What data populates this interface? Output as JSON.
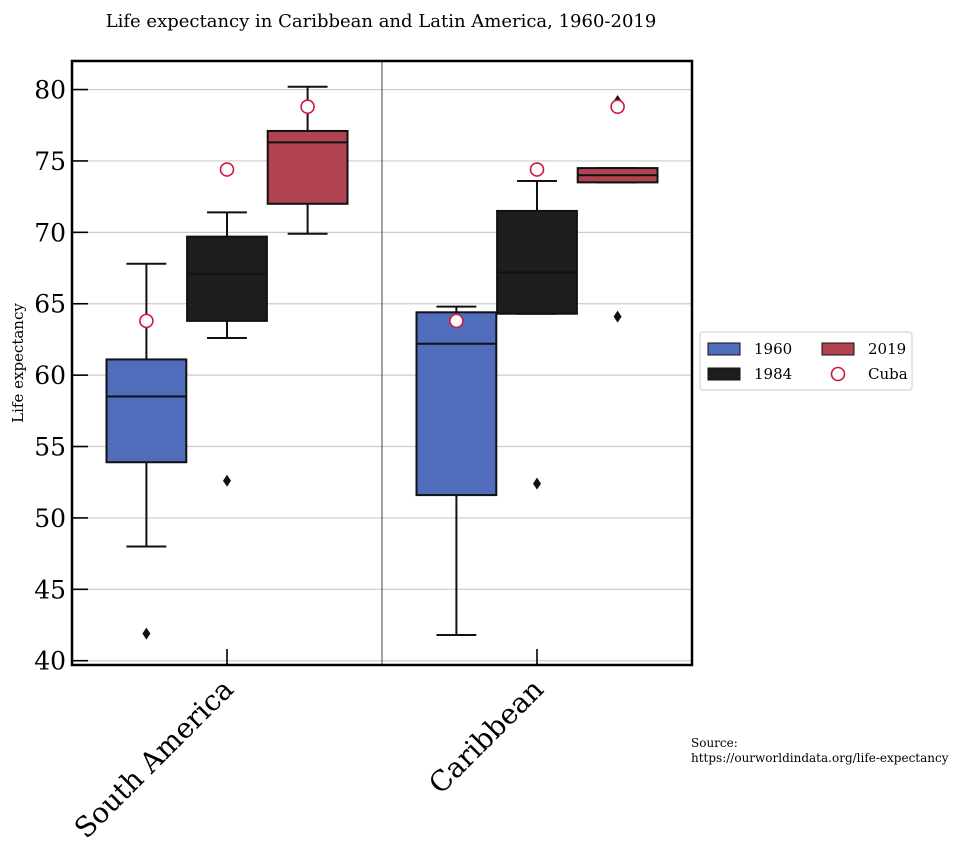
{
  "chart_data": {
    "type": "box",
    "title": "Life expectancy in Caribbean and Latin America, 1960-2019",
    "ylabel": "Life expectancy",
    "xlabel": "",
    "ylim": [
      39.7,
      82
    ],
    "yticks": [
      40,
      45,
      50,
      55,
      60,
      65,
      70,
      75,
      80
    ],
    "grid": true,
    "categories": [
      "South America",
      "Caribbean"
    ],
    "series": [
      {
        "name": "1960",
        "color": "#4f6dbb",
        "boxes": [
          {
            "whisker_low": 48.0,
            "q1": 53.9,
            "median": 58.5,
            "q3": 61.1,
            "whisker_high": 67.8,
            "outliers": [
              41.9
            ]
          },
          {
            "whisker_low": 41.8,
            "q1": 51.6,
            "median": 62.2,
            "q3": 64.4,
            "whisker_high": 64.8,
            "outliers": []
          }
        ]
      },
      {
        "name": "1984",
        "color": "#1e1e1e",
        "boxes": [
          {
            "whisker_low": 62.6,
            "q1": 63.8,
            "median": 67.1,
            "q3": 69.7,
            "whisker_high": 71.4,
            "outliers": [
              52.6
            ]
          },
          {
            "whisker_low": 64.3,
            "q1": 64.3,
            "median": 67.2,
            "q3": 71.5,
            "whisker_high": 73.6,
            "outliers": [
              52.4
            ]
          }
        ]
      },
      {
        "name": "2019",
        "color": "#b0434f",
        "boxes": [
          {
            "whisker_low": 69.9,
            "q1": 72.0,
            "median": 76.3,
            "q3": 77.1,
            "whisker_high": 80.2,
            "outliers": []
          },
          {
            "whisker_low": 73.5,
            "q1": 73.5,
            "median": 74.0,
            "q3": 74.5,
            "whisker_high": 74.5,
            "outliers": [
              79.2,
              64.1
            ]
          }
        ]
      }
    ],
    "markers": {
      "name": "Cuba",
      "color": "#d0173f",
      "points": [
        {
          "category": "South America",
          "year": "1960",
          "value": 63.8
        },
        {
          "category": "South America",
          "year": "1984",
          "value": 74.4
        },
        {
          "category": "South America",
          "year": "2019",
          "value": 78.8
        },
        {
          "category": "Caribbean",
          "year": "1960",
          "value": 63.8
        },
        {
          "category": "Caribbean",
          "year": "1984",
          "value": 74.4
        },
        {
          "category": "Caribbean",
          "year": "2019",
          "value": 78.8
        }
      ]
    },
    "legend": {
      "placement": "outside-right",
      "columns": 2,
      "entries": [
        "1960",
        "2019",
        "1984",
        "Cuba"
      ]
    }
  },
  "source": {
    "label": "Source:",
    "url": "https://ourworldindata.org/life-expectancy"
  }
}
